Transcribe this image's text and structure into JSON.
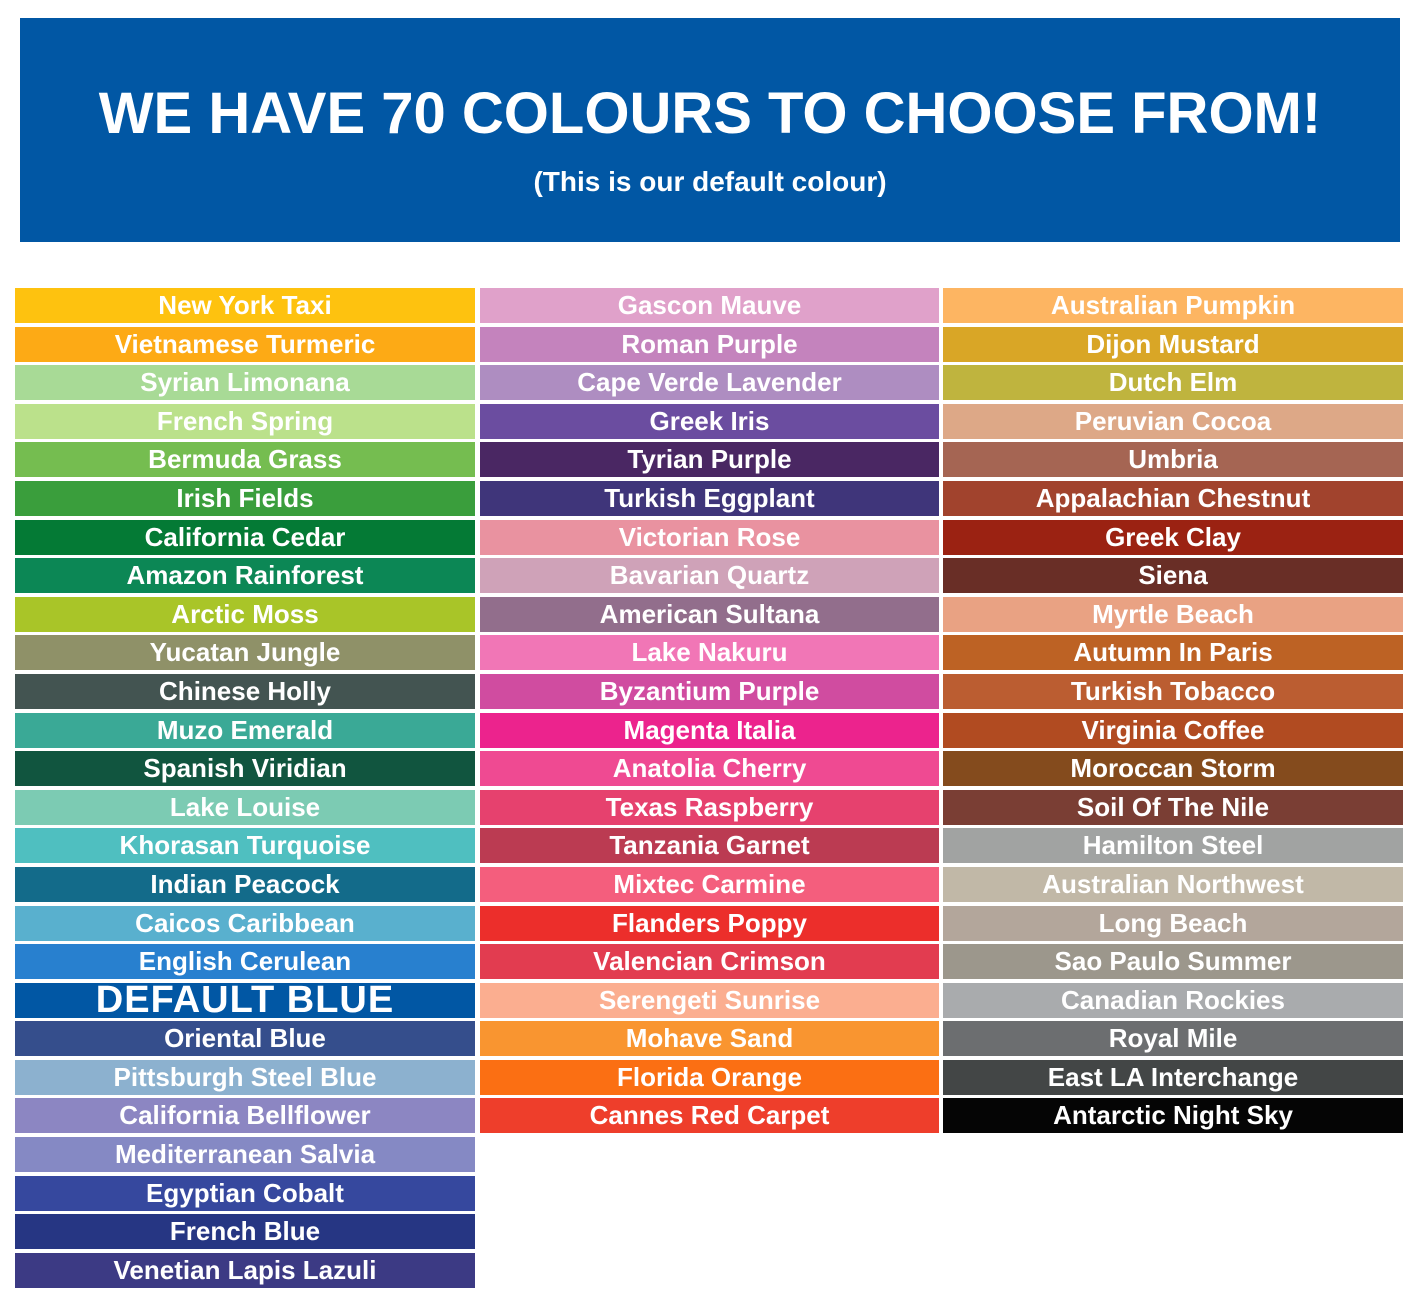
{
  "banner": {
    "title": "WE HAVE 70 COLOURS TO CHOOSE FROM!",
    "subtitle": "(This is our default colour)",
    "color": "#0157a4"
  },
  "columns": [
    [
      {
        "name": "New York Taxi",
        "color": "#fec20f"
      },
      {
        "name": "Vietnamese Turmeric",
        "color": "#fdaa15"
      },
      {
        "name": "Syrian Limonana",
        "color": "#a8da96"
      },
      {
        "name": "French Spring",
        "color": "#bbe18b"
      },
      {
        "name": "Bermuda Grass",
        "color": "#75bd50"
      },
      {
        "name": "Irish Fields",
        "color": "#3a9e3c"
      },
      {
        "name": "California Cedar",
        "color": "#047a35"
      },
      {
        "name": "Amazon Rainforest",
        "color": "#0c8755"
      },
      {
        "name": "Arctic Moss",
        "color": "#a9c528"
      },
      {
        "name": "Yucatan Jungle",
        "color": "#8f9168"
      },
      {
        "name": "Chinese Holly",
        "color": "#435451"
      },
      {
        "name": "Muzo Emerald",
        "color": "#3aa996"
      },
      {
        "name": "Spanish Viridian",
        "color": "#11553f"
      },
      {
        "name": "Lake Louise",
        "color": "#7ccbb3"
      },
      {
        "name": "Khorasan Turquoise",
        "color": "#4fbfc0"
      },
      {
        "name": "Indian Peacock",
        "color": "#136b8a"
      },
      {
        "name": "Caicos Caribbean",
        "color": "#59b0ce"
      },
      {
        "name": "English Cerulean",
        "color": "#2880cf"
      },
      {
        "name": "DEFAULT BLUE",
        "color": "#0157a4",
        "big": true
      },
      {
        "name": "Oriental Blue",
        "color": "#354e8c"
      },
      {
        "name": "Pittsburgh Steel Blue",
        "color": "#8cb1cf"
      },
      {
        "name": "California Bellflower",
        "color": "#8c86c2"
      },
      {
        "name": "Mediterranean Salvia",
        "color": "#8589c4"
      },
      {
        "name": "Egyptian Cobalt",
        "color": "#36489e"
      },
      {
        "name": "French Blue",
        "color": "#263683"
      },
      {
        "name": "Venetian Lapis Lazuli",
        "color": "#3c3a84"
      }
    ],
    [
      {
        "name": "Gascon Mauve",
        "color": "#e0a1ca"
      },
      {
        "name": "Roman Purple",
        "color": "#c483bd"
      },
      {
        "name": "Cape Verde Lavender",
        "color": "#ae8dc1"
      },
      {
        "name": "Greek Iris",
        "color": "#6b4da0"
      },
      {
        "name": "Tyrian Purple",
        "color": "#4a2763"
      },
      {
        "name": "Turkish Eggplant",
        "color": "#3f357a"
      },
      {
        "name": "Victorian Rose",
        "color": "#e992a0"
      },
      {
        "name": "Bavarian Quartz",
        "color": "#cfa2b8"
      },
      {
        "name": "American Sultana",
        "color": "#926e8c"
      },
      {
        "name": "Lake Nakuru",
        "color": "#f176b6"
      },
      {
        "name": "Byzantium Purple",
        "color": "#d04ca0"
      },
      {
        "name": "Magenta Italia",
        "color": "#ec238d"
      },
      {
        "name": "Anatolia Cherry",
        "color": "#ef4a92"
      },
      {
        "name": "Texas Raspberry",
        "color": "#e6416e"
      },
      {
        "name": "Tanzania Garnet",
        "color": "#bb3b52"
      },
      {
        "name": "Mixtec Carmine",
        "color": "#f45e7d"
      },
      {
        "name": "Flanders Poppy",
        "color": "#ec2e2b"
      },
      {
        "name": "Valencian Crimson",
        "color": "#e23c50"
      },
      {
        "name": "Serengeti Sunrise",
        "color": "#fbae90"
      },
      {
        "name": "Mohave Sand",
        "color": "#f99530"
      },
      {
        "name": "Florida Orange",
        "color": "#fb6f13"
      },
      {
        "name": "Cannes Red Carpet",
        "color": "#ee3e2b"
      }
    ],
    [
      {
        "name": "Australian Pumpkin",
        "color": "#fdb562"
      },
      {
        "name": "Dijon Mustard",
        "color": "#d9a626"
      },
      {
        "name": "Dutch Elm",
        "color": "#bfb43e"
      },
      {
        "name": "Peruvian Cocoa",
        "color": "#dda887"
      },
      {
        "name": "Umbria",
        "color": "#a56553"
      },
      {
        "name": "Appalachian Chestnut",
        "color": "#a1432d"
      },
      {
        "name": "Greek Clay",
        "color": "#9b2212"
      },
      {
        "name": "Siena",
        "color": "#692e26"
      },
      {
        "name": "Myrtle Beach",
        "color": "#e9a283"
      },
      {
        "name": "Autumn In Paris",
        "color": "#bd6224"
      },
      {
        "name": "Turkish Tobacco",
        "color": "#bb5d31"
      },
      {
        "name": "Virginia Coffee",
        "color": "#b14b21"
      },
      {
        "name": "Moroccan Storm",
        "color": "#844b1d"
      },
      {
        "name": "Soil Of The Nile",
        "color": "#7a3e34"
      },
      {
        "name": "Hamilton Steel",
        "color": "#a1a3a2"
      },
      {
        "name": "Australian Northwest",
        "color": "#c1b8a7"
      },
      {
        "name": "Long Beach",
        "color": "#b3a69b"
      },
      {
        "name": "Sao Paulo Summer",
        "color": "#9c978c"
      },
      {
        "name": "Canadian Rockies",
        "color": "#a9abad"
      },
      {
        "name": "Royal Mile",
        "color": "#6c6e70"
      },
      {
        "name": "East LA Interchange",
        "color": "#434646"
      },
      {
        "name": "Antarctic Night Sky",
        "color": "#050505"
      }
    ]
  ]
}
